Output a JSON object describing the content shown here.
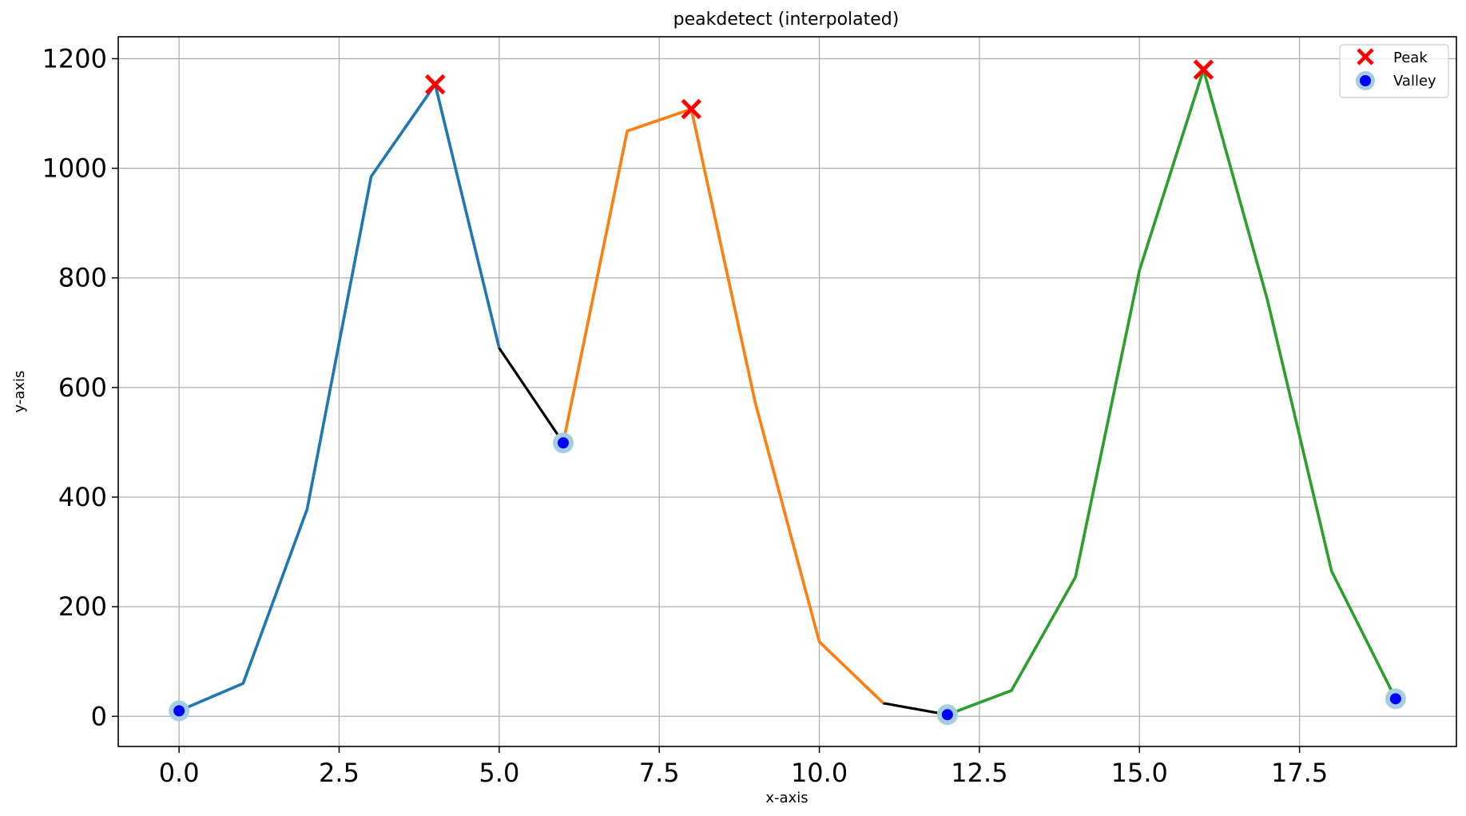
{
  "chart_data": {
    "type": "line",
    "title": "peakdetect (interpolated)",
    "xlabel": "x-axis",
    "ylabel": "y-axis",
    "xlim": [
      -0.95,
      19.95
    ],
    "ylim": [
      -55,
      1240
    ],
    "grid": true,
    "legend_position": "top-right",
    "xticks": [
      0.0,
      2.5,
      5.0,
      7.5,
      10.0,
      12.5,
      15.0,
      17.5
    ],
    "xtick_labels": [
      "0.0",
      "2.5",
      "5.0",
      "7.5",
      "10.0",
      "12.5",
      "15.0",
      "17.5"
    ],
    "yticks": [
      0,
      200,
      400,
      600,
      800,
      1000,
      1200
    ],
    "ytick_labels": [
      "0",
      "200",
      "400",
      "600",
      "800",
      "1000",
      "1200"
    ],
    "base_line": {
      "color": "#000000",
      "x": [
        0,
        1,
        2,
        3,
        4,
        5,
        6,
        7,
        8,
        9,
        10,
        11,
        12,
        13,
        14,
        15,
        16,
        17,
        18,
        19
      ],
      "y": [
        10,
        60,
        378,
        985,
        1153,
        672,
        499,
        1068,
        1108,
        572,
        136,
        24,
        3,
        47,
        254,
        814,
        1180,
        759,
        265,
        32
      ]
    },
    "segments": [
      {
        "color": "#1f77b4",
        "x_start": 0,
        "x_end": 5
      },
      {
        "color": "#ff7f0e",
        "x_start": 6,
        "x_end": 11
      },
      {
        "color": "#2ca02c",
        "x_start": 12,
        "x_end": 19
      }
    ],
    "peaks": {
      "color": "#ff0000",
      "x": [
        4,
        8,
        16
      ],
      "y": [
        1153,
        1108,
        1180
      ]
    },
    "valleys": {
      "color": "#0000ff",
      "halo_color": "#a6cee3",
      "x": [
        0,
        6,
        12,
        19
      ],
      "y": [
        10,
        499,
        3,
        32
      ]
    },
    "legend": [
      {
        "label": "Peak",
        "marker": "x",
        "color": "#ff0000"
      },
      {
        "label": "Valley",
        "marker": "o",
        "color": "#0000ff"
      }
    ]
  }
}
